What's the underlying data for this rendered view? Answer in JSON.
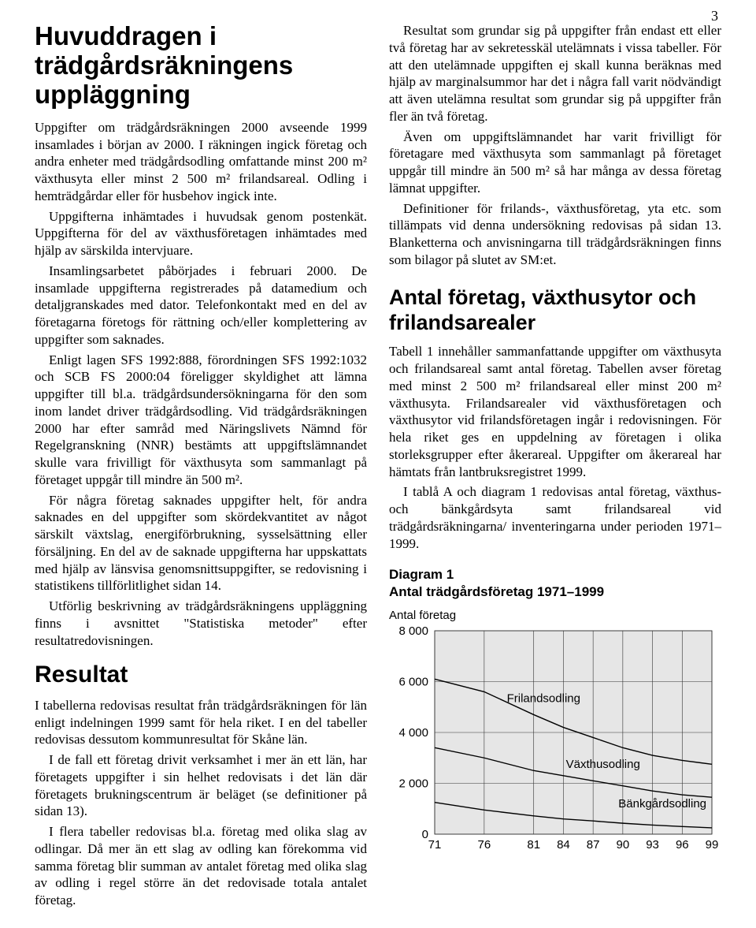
{
  "page_number": "3",
  "left": {
    "h1": "Huvuddragen i trädgårdsräkningens uppläggning",
    "p1": "Uppgifter om trädgårdsräkningen 2000 avseende 1999 insamlades i början av 2000. I räkningen ingick företag och andra enheter med trädgårdsodling omfattande minst 200 m² växthusyta eller minst 2 500 m² frilandsareal. Odling i hemträdgårdar eller för husbehov ingick inte.",
    "p2": "Uppgifterna inhämtades i huvudsak genom postenkät. Uppgifterna för del av växthusföretagen inhämtades med hjälp av särskilda intervjuare.",
    "p3": "Insamlingsarbetet påbörjades i februari 2000. De insamlade uppgifterna registrerades på datamedium och detaljgranskades med dator. Telefonkontakt med en del av företagarna företogs för rättning och/eller komplettering av uppgifter som saknades.",
    "p4": "Enligt lagen SFS 1992:888, förordningen SFS 1992:1032 och SCB FS 2000:04 föreligger skyldighet att lämna uppgifter till bl.a. trädgårdsundersökningarna för den som inom landet driver trädgårdsodling. Vid trädgårdsräkningen 2000 har efter samråd med Näringslivets Nämnd för Regelgranskning (NNR) bestämts att uppgiftslämnandet skulle vara frivilligt för växthusyta som sammanlagt på företaget uppgår till mindre än 500 m².",
    "p5": "För några företag saknades uppgifter helt, för andra saknades en del uppgifter som skördekvantitet av något särskilt växtslag, energiförbrukning, sysselsättning eller försäljning. En del av de saknade uppgifterna har uppskattats med hjälp av länsvisa genomsnittsuppgifter, se redovisning i statistikens tillförlitlighet sidan 14.",
    "p6": "Utförlig beskrivning av trädgårdsräkningens uppläggning finns i avsnittet \"Statistiska metoder\" efter resultatredovisningen.",
    "h2": "Resultat",
    "p7": "I tabellerna redovisas resultat från trädgårdsräkningen för län enligt indelningen 1999 samt för hela riket. I en del tabeller redovisas dessutom kommunresultat för Skåne län.",
    "p8": "I de fall ett företag drivit verksamhet i mer än ett län, har företagets uppgifter i sin helhet redovisats i det län där företagets brukningscentrum är beläget (se definitioner på sidan 13).",
    "p9": "I flera tabeller redovisas bl.a. företag med olika slag av odlingar. Då mer än ett slag av odling kan förekomma vid samma företag blir summan av antalet företag med olika slag av odling i regel större än det redovisade totala antalet företag."
  },
  "right": {
    "p1": "Resultat som grundar sig på uppgifter från endast ett eller två företag har av sekretesskäl utelämnats i vissa tabeller. För att den utelämnade uppgiften ej skall kunna beräknas med hjälp av marginalsummor har det i några fall varit nödvändigt att även utelämna resultat som grundar sig på uppgifter från fler än två företag.",
    "p2": "Även om uppgiftslämnandet har varit frivilligt för företagare med växthusyta som sammanlagt på företaget uppgår till mindre än 500 m² så har många av dessa företag lämnat uppgifter.",
    "p3": "Definitioner för frilands-, växthusföretag, yta etc. som tillämpats vid denna undersökning redovisas på sidan 13. Blanketterna och anvisningarna till trädgårdsräkningen finns som bilagor på slutet av SM:et.",
    "h2": "Antal företag, växthusytor och frilandsarealer",
    "p4": "Tabell 1 innehåller sammanfattande uppgifter om växthusyta och frilandsareal samt antal företag. Tabellen avser företag med minst 2 500 m² frilandsareal eller minst 200 m² växthusyta. Frilandsarealer vid växthusföretagen och växthusytor vid frilandsföretagen ingår i redovisningen. För hela riket ges en uppdelning av företagen i olika storleksgrupper efter åkerareal. Uppgifter om åkerareal har hämtats från lantbruksregistret 1999.",
    "p5": "I tablå A och diagram 1 redovisas antal företag, växthus- och bänkgårdsyta samt frilandsareal vid trädgårdsräkningarna/ inventeringarna under perioden 1971–1999."
  },
  "chart": {
    "title_line1": "Diagram 1",
    "title_line2": "Antal trädgårdsföretag 1971–1999",
    "ylabel": "Antal företag",
    "type": "line",
    "x_ticks": [
      "71",
      "76",
      "81",
      "84",
      "87",
      "90",
      "93",
      "96",
      "99"
    ],
    "y_ticks": [
      0,
      2000,
      4000,
      6000,
      8000
    ],
    "y_tick_labels": [
      "0",
      "2 000",
      "4 000",
      "6 000",
      "8 000"
    ],
    "xlim": [
      71,
      99
    ],
    "ylim": [
      0,
      8000
    ],
    "background_color": "#e6e6e6",
    "plot_background": "#e6e6e6",
    "grid_color": "#333333",
    "line_color": "#000000",
    "line_width": 1.4,
    "label_fontsize": 15,
    "tick_fontsize": 15,
    "series": [
      {
        "name": "Frilandsodling",
        "label_pos": {
          "x": 82,
          "y": 5200
        },
        "points": [
          [
            71,
            6100
          ],
          [
            76,
            5600
          ],
          [
            81,
            4700
          ],
          [
            84,
            4200
          ],
          [
            87,
            3800
          ],
          [
            90,
            3400
          ],
          [
            93,
            3100
          ],
          [
            96,
            2900
          ],
          [
            99,
            2750
          ]
        ]
      },
      {
        "name": "Växthusodling",
        "label_pos": {
          "x": 88,
          "y": 2600
        },
        "points": [
          [
            71,
            3400
          ],
          [
            76,
            3000
          ],
          [
            81,
            2500
          ],
          [
            84,
            2300
          ],
          [
            87,
            2100
          ],
          [
            90,
            1900
          ],
          [
            93,
            1700
          ],
          [
            96,
            1550
          ],
          [
            99,
            1450
          ]
        ]
      },
      {
        "name": "Bänkgårdsodling",
        "label_pos": {
          "x": 94,
          "y": 1050
        },
        "points": [
          [
            71,
            1250
          ],
          [
            76,
            950
          ],
          [
            81,
            720
          ],
          [
            84,
            600
          ],
          [
            87,
            520
          ],
          [
            90,
            430
          ],
          [
            93,
            360
          ],
          [
            96,
            300
          ],
          [
            99,
            250
          ]
        ]
      }
    ]
  }
}
